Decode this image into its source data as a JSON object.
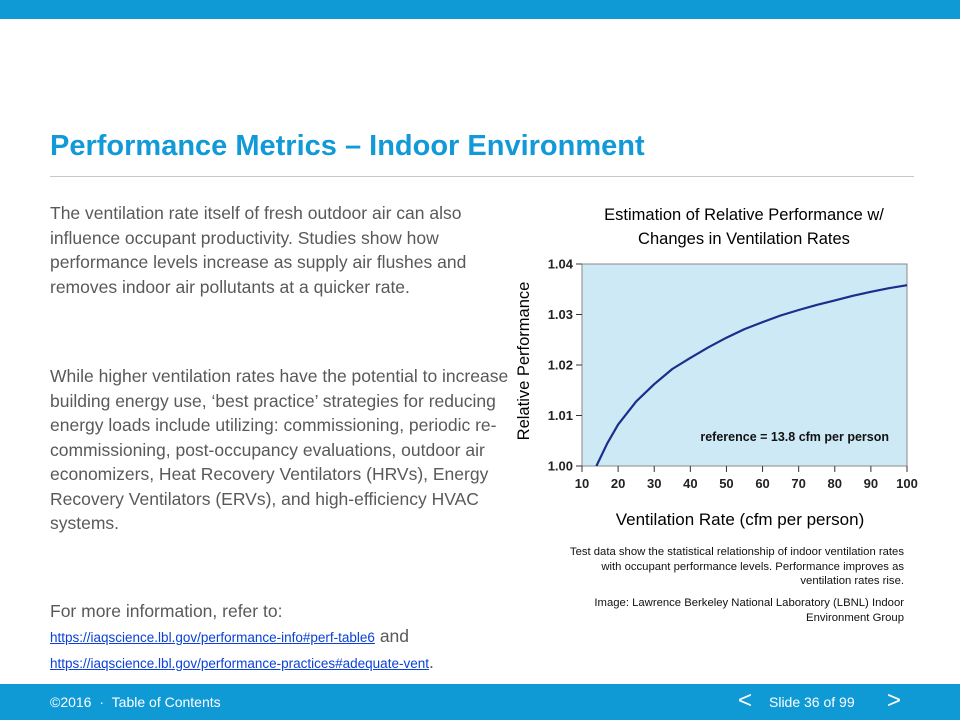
{
  "header": {
    "title": "Performance Metrics – Indoor Environment"
  },
  "body": {
    "paragraph1": "The ventilation rate itself of fresh outdoor air can also influence occupant productivity. Studies show how performance levels increase as supply air flushes and removes indoor air pollutants at a quicker rate.",
    "paragraph2": "While higher ventilation rates have the potential to increase building energy use, ‘best practice’ strategies for reducing energy loads include utilizing: commissioning, periodic re-commissioning, post-occupancy evaluations, outdoor air economizers, Heat Recovery Ventilators (HRVs), Energy Recovery Ventilators (ERVs), and high-efficiency HVAC systems.",
    "more_info": "For more information, refer to:",
    "link1": "https://iaqscience.lbl.gov/performance-info#perf-table6",
    "and_text": "and",
    "link2": "https://iaqscience.lbl.gov/performance-practices#adequate-vent",
    "period": "."
  },
  "chart_title": {
    "line1": "Estimation of Relative Performance w/",
    "line2": "Changes in Ventilation Rates"
  },
  "chart_data": {
    "type": "line",
    "xlabel": "Ventilation Rate (cfm per person)",
    "ylabel": "Relative Performance",
    "xlim": [
      10,
      100
    ],
    "ylim": [
      1.0,
      1.04
    ],
    "x_ticks": [
      "10",
      "20",
      "30",
      "40",
      "50",
      "60",
      "70",
      "80",
      "90",
      "100"
    ],
    "y_ticks": [
      "1.00",
      "1.01",
      "1.02",
      "1.03",
      "1.04"
    ],
    "annotation": "reference = 13.8 cfm per person",
    "grid": false,
    "colors": {
      "plot_bg": "#cde9f6",
      "line": "#1a2e8a"
    },
    "series": [
      {
        "x": [
          14,
          17,
          20,
          25,
          30,
          35,
          40,
          45,
          50,
          55,
          60,
          65,
          70,
          75,
          80,
          85,
          90,
          95,
          100
        ],
        "y": [
          1.0,
          1.0045,
          1.0082,
          1.0128,
          1.0162,
          1.0192,
          1.0214,
          1.0235,
          1.0254,
          1.0271,
          1.0285,
          1.0298,
          1.0309,
          1.0319,
          1.0328,
          1.0337,
          1.0345,
          1.0352,
          1.0358
        ]
      }
    ]
  },
  "captions": {
    "caption1": "Test data show the statistical relationship of indoor ventilation rates with occupant performance levels. Performance improves as ventilation rates rise.",
    "caption2": "Image: Lawrence Berkeley National Laboratory (LBNL) Indoor Environment Group"
  },
  "footer": {
    "copyright": "©2016",
    "separator": "·",
    "toc": "Table of Contents",
    "prev": "<",
    "slide": "Slide 36 of 99",
    "next": ">"
  },
  "colors": {
    "accent": "#1199d8",
    "bar": "#0f9ad6",
    "body_text": "#595959",
    "link": "#0b40d9"
  }
}
